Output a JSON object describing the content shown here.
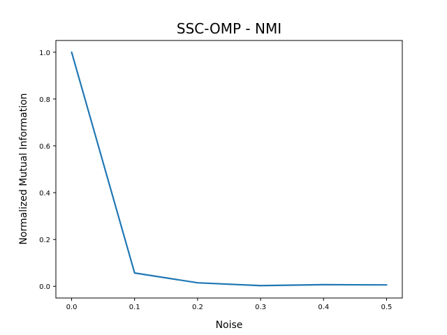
{
  "chart_data": {
    "type": "line",
    "title": "SSC-OMP - NMI",
    "xlabel": "Noise",
    "ylabel": "Normalized Mutual Information",
    "xlim": [
      -0.025,
      0.525
    ],
    "ylim": [
      -0.05,
      1.05
    ],
    "xticks": [
      0.0,
      0.1,
      0.2,
      0.3,
      0.4,
      0.5
    ],
    "xtick_labels": [
      "0.0",
      "0.1",
      "0.2",
      "0.3",
      "0.4",
      "0.5"
    ],
    "yticks": [
      0.0,
      0.2,
      0.4,
      0.6,
      0.8,
      1.0
    ],
    "ytick_labels": [
      "0.0",
      "0.2",
      "0.4",
      "0.6",
      "0.8",
      "1.0"
    ],
    "grid": false,
    "series": [
      {
        "color": "#1f77b4",
        "x": [
          0.0,
          0.1,
          0.2,
          0.3,
          0.4,
          0.5
        ],
        "y": [
          1.0,
          0.057,
          0.015,
          0.003,
          0.007,
          0.006
        ]
      }
    ]
  }
}
